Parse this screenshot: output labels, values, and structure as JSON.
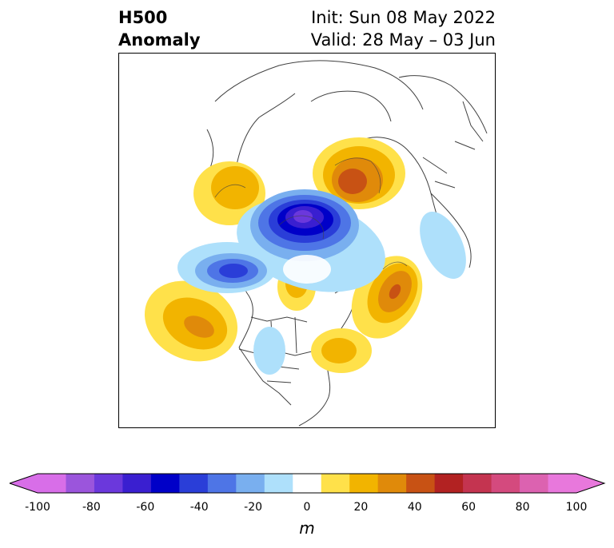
{
  "title": {
    "left_line1": "H500",
    "left_line2": "Anomaly",
    "right_line1": "Init: Sun 08 May 2022",
    "right_line2": "Valid: 28 May – 03 Jun"
  },
  "colorbar": {
    "unit": "m",
    "ticks": [
      "-100",
      "-80",
      "-60",
      "-40",
      "-20",
      "0",
      "20",
      "40",
      "60",
      "80",
      "100"
    ],
    "levels": [
      -100,
      -90,
      -80,
      -70,
      -60,
      -50,
      -40,
      -30,
      -20,
      -10,
      10,
      20,
      30,
      40,
      50,
      60,
      70,
      80,
      90,
      100
    ],
    "colors": [
      "#d86ee8",
      "#9b55dc",
      "#6b38dc",
      "#3a1fd0",
      "#0000c8",
      "#2a3ed8",
      "#4e75e6",
      "#79afef",
      "#aee0fb",
      "#ffffff",
      "#ffe14a",
      "#f2b400",
      "#e08a0a",
      "#c85214",
      "#b22222",
      "#c43450",
      "#d44a7e",
      "#dc62b0",
      "#e878dc"
    ],
    "extend_low_color": "#d86ee8",
    "extend_high_color": "#e878dc"
  },
  "map": {
    "projection": "north-polar-stereographic",
    "region": "Northern Hemisphere / North America"
  }
}
